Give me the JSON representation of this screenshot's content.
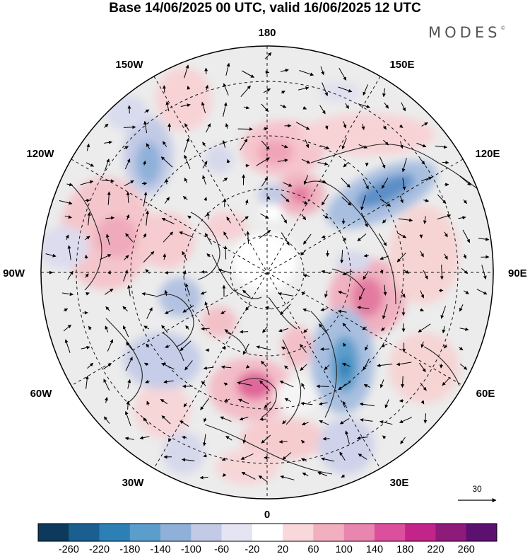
{
  "title": "Base 14/06/2025 00 UTC, valid 16/06/2025 12 UTC",
  "logo": "MODES",
  "logo_mark": "©",
  "longitude_labels": {
    "top": "180",
    "bottom": "0",
    "left": "90W",
    "right": "90E",
    "upper_left_1": "150W",
    "upper_left_2": "120W",
    "upper_right_1": "150E",
    "upper_right_2": "120E",
    "lower_left_1": "60W",
    "lower_left_2": "30W",
    "lower_right_1": "60E",
    "lower_right_2": "30E"
  },
  "vector_reference": "30",
  "colorbar": {
    "levels": [
      "-260",
      "-220",
      "-180",
      "-140",
      "-100",
      "-60",
      "-20",
      "20",
      "60",
      "100",
      "140",
      "180",
      "220",
      "260"
    ],
    "colors": [
      "#0d3a5c",
      "#1a5f8f",
      "#2d80b6",
      "#5b9dcb",
      "#8fb1d9",
      "#c3cae6",
      "#e4e4f2",
      "#ffffff",
      "#f8d8da",
      "#f2afbf",
      "#e886b0",
      "#dc4f9c",
      "#c2248a",
      "#8e1a7a",
      "#5c1070"
    ]
  }
}
